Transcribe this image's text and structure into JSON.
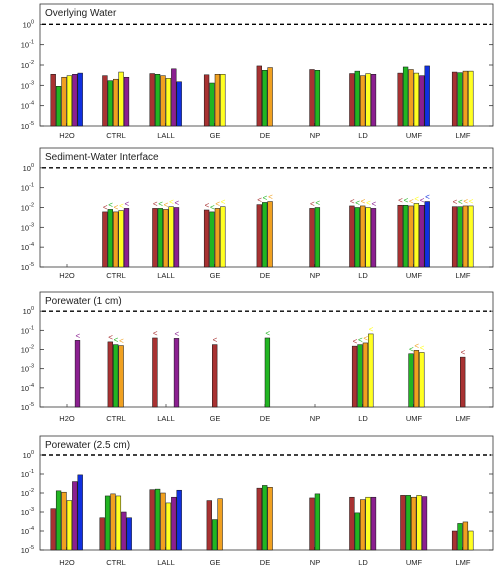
{
  "chart_data": {
    "type": "bar",
    "yscale": "log",
    "ylim": [
      1e-05,
      10
    ],
    "reference_line": 1,
    "categories": [
      "H2O",
      "CTRL",
      "LALL",
      "GE",
      "DE",
      "NP",
      "LD",
      "UMF",
      "LMF"
    ],
    "y_tick_labels": [
      "10^-5",
      "10^-4",
      "10^-3",
      "10^-2",
      "10^-1",
      "10^0"
    ],
    "bar_colors": [
      "#a83232",
      "#22b522",
      "#f0a020",
      "#ffff22",
      "#8b2090",
      "#1030e0"
    ],
    "panels": [
      {
        "title": "Overlying Water",
        "bars": [
          [
            0.0035,
            0.0009,
            0.0025,
            0.003,
            0.0035,
            0.004
          ],
          [
            0.003,
            0.0017,
            0.002,
            0.0045,
            0.0025
          ],
          [
            0.0038,
            0.0035,
            0.003,
            0.0022,
            0.0065,
            0.0015
          ],
          [
            0.0033,
            0.0013,
            0.0035,
            0.0035
          ],
          [
            0.009,
            0.0055,
            0.0075
          ],
          [
            0.006,
            0.0055
          ],
          [
            0.0038,
            0.005,
            0.003,
            0.0038,
            0.0035
          ],
          [
            0.004,
            0.008,
            0.006,
            0.004,
            0.003,
            0.009
          ],
          [
            0.0045,
            0.0042,
            0.005,
            0.005
          ]
        ]
      },
      {
        "title": "Sediment-Water Interface",
        "bars": [
          [],
          [
            0.006,
            0.008,
            0.006,
            0.007,
            0.009
          ],
          [
            0.009,
            0.009,
            0.008,
            0.011,
            0.01
          ],
          [
            0.0075,
            0.006,
            0.009,
            0.011
          ],
          [
            0.014,
            0.018,
            0.02
          ],
          [
            0.009,
            0.01
          ],
          [
            0.012,
            0.01,
            0.012,
            0.01,
            0.009
          ],
          [
            0.013,
            0.013,
            0.012,
            0.016,
            0.013,
            0.02
          ],
          [
            0.011,
            0.011,
            0.012,
            0.012
          ]
        ],
        "flag_marker": "<"
      },
      {
        "title": "Porewater (1 cm)",
        "bars": [
          [
            0,
            0,
            0,
            0,
            0.03
          ],
          [
            0.025,
            0.018,
            0.016
          ],
          [
            0.04,
            0,
            0,
            0,
            0.038
          ],
          [
            0.018
          ],
          [
            0,
            0.04
          ],
          [],
          [
            0.015,
            0.018,
            0.022,
            0.065
          ],
          [
            0,
            0.006,
            0.009,
            0.007
          ],
          [
            0.004
          ]
        ],
        "flag_marker": "<"
      },
      {
        "title": "Porewater (2.5 cm)",
        "bars": [
          [
            0.0015,
            0.013,
            0.011,
            0.004,
            0.04,
            0.09
          ],
          [
            0.0005,
            0.007,
            0.009,
            0.007,
            0.001,
            0.0005
          ],
          [
            0.015,
            0.016,
            0.01,
            0.003,
            0.006,
            0.014
          ],
          [
            0.004,
            0.0004,
            0.005
          ],
          [
            0.018,
            0.025,
            0.02
          ],
          [
            0.0055,
            0.009
          ],
          [
            0.006,
            0.0009,
            0.0045,
            0.006,
            0.006
          ],
          [
            0.0075,
            0.0075,
            0.006,
            0.0075,
            0.0065
          ],
          [
            0.0001,
            0.00025,
            0.0003,
            0.0001
          ]
        ]
      }
    ]
  }
}
